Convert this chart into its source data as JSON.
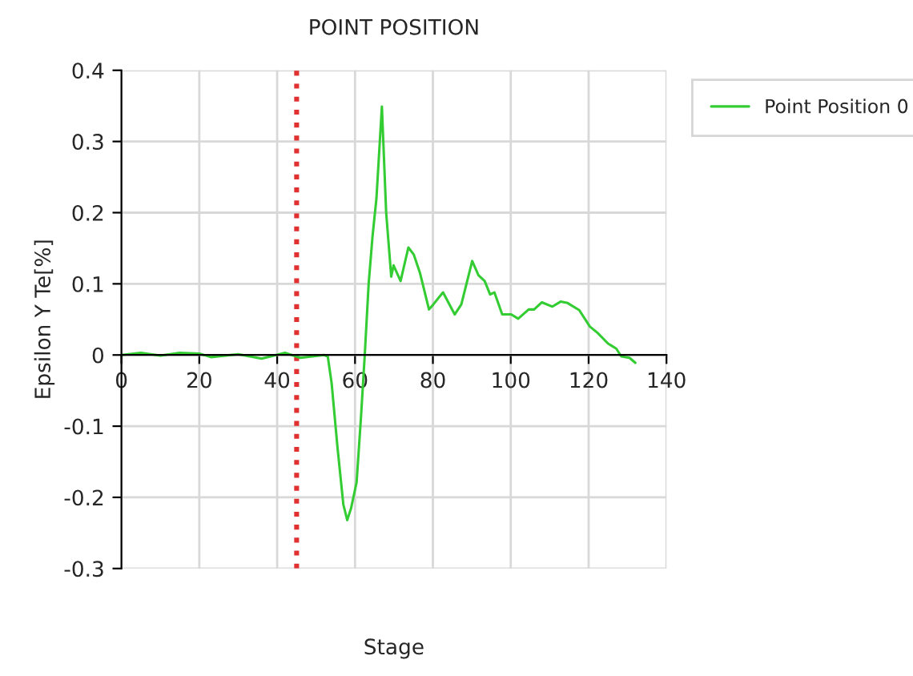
{
  "chart_data": {
    "type": "line",
    "title": "POINT POSITION",
    "xlabel": "Stage",
    "ylabel": "Epsilon Y Te[%]",
    "series": [
      {
        "name": "Point Position 0",
        "color": "#33cc33",
        "x": [
          0,
          5,
          10,
          15,
          20,
          23,
          30,
          36,
          42,
          46,
          52,
          53,
          54,
          55.5,
          57,
          58,
          59,
          60.4,
          61.5,
          62.5,
          63.5,
          64.5,
          65.5,
          66.9,
          68,
          69.3,
          69.9,
          71.7,
          73.7,
          75.1,
          76.7,
          79,
          80.1,
          82.6,
          85.6,
          87.3,
          90.1,
          91.7,
          93.3,
          94.7,
          95.8,
          97.8,
          100.1,
          101.9,
          104.6,
          106,
          108,
          110.7,
          112.8,
          114.6,
          117.6,
          120.3,
          122.3,
          125,
          127.1,
          128.4,
          130.5,
          132
        ],
        "values": [
          0,
          0.003,
          -0.001,
          0.003,
          0.002,
          -0.003,
          0.001,
          -0.005,
          0.003,
          -0.004,
          0,
          -0.002,
          -0.04,
          -0.13,
          -0.21,
          -0.232,
          -0.215,
          -0.179,
          -0.09,
          0,
          0.1,
          0.167,
          0.22,
          0.349,
          0.2,
          0.11,
          0.126,
          0.104,
          0.151,
          0.141,
          0.115,
          0.064,
          0.071,
          0.088,
          0.057,
          0.071,
          0.132,
          0.112,
          0.104,
          0.085,
          0.088,
          0.057,
          0.057,
          0.051,
          0.064,
          0.064,
          0.074,
          0.068,
          0.075,
          0.073,
          0.063,
          0.04,
          0.031,
          0.016,
          0.009,
          -0.002,
          -0.004,
          -0.011
        ]
      }
    ],
    "ref_lines": [
      {
        "axis": "x",
        "value": 45,
        "color": "#e03030",
        "line_style": "dotted"
      }
    ],
    "xlim": [
      0,
      140
    ],
    "xticks": [
      0,
      20,
      40,
      60,
      80,
      100,
      120,
      140
    ],
    "ylim": [
      -0.3,
      0.4
    ],
    "yticks": [
      -0.3,
      -0.2,
      -0.1,
      0,
      0.1,
      0.2,
      0.3,
      0.4
    ],
    "grid": true,
    "legend": "top right",
    "marker": "none",
    "line_style": "solid"
  }
}
